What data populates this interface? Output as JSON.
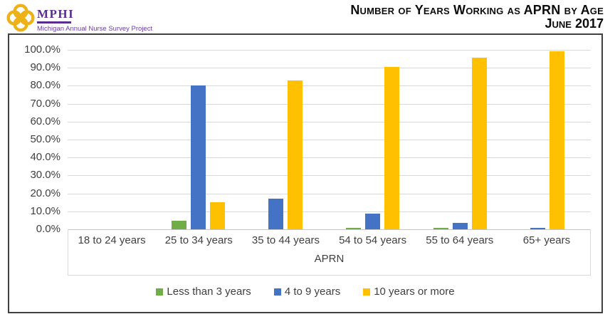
{
  "header": {
    "logo": {
      "acronym": "MPHI",
      "subtitle": "Michigan Annual Nurse Survey Project",
      "purple": "#5b2d8e",
      "gold": "#edb119"
    },
    "title_line1": "Number of Years Working as APRN by Age",
    "title_line2": "June 2017"
  },
  "chart_data": {
    "type": "bar",
    "title": "Number of Years Working as APRN by Age",
    "subtitle": "June 2017",
    "categories": [
      "18 to 24 years",
      "25 to 34 years",
      "35 to 44 years",
      "54 to 54 years",
      "55 to 64 years",
      "65+ years"
    ],
    "series": [
      {
        "name": "Less than 3 years",
        "color": "#70ad47",
        "values": [
          0,
          4.8,
          0,
          0.9,
          0.9,
          0
        ]
      },
      {
        "name": "4 to 9 years",
        "color": "#4472c4",
        "values": [
          0,
          80.0,
          17.1,
          8.7,
          3.5,
          0.9
        ]
      },
      {
        "name": "10 years or more",
        "color": "#ffc000",
        "values": [
          0,
          15.2,
          82.9,
          90.4,
          95.6,
          99.1
        ]
      }
    ],
    "xlabel": "APRN",
    "ylabel": "",
    "ylim": [
      0,
      100
    ],
    "ytick_step": 10,
    "ytick_suffix": "%",
    "ytick_decimals": 1,
    "grid": true,
    "legend_position": "bottom",
    "gridline_color": "#d9d9d9",
    "axis_text_color": "#3f3f3f"
  }
}
